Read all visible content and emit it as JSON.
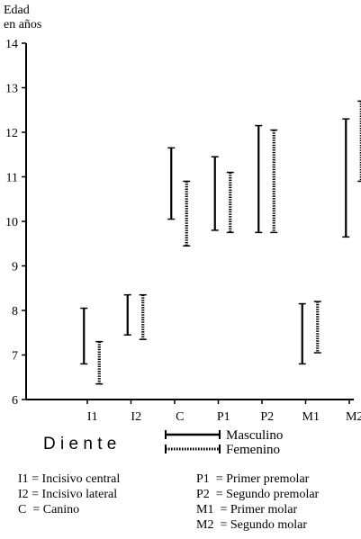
{
  "chart_data": {
    "type": "range",
    "y_axis_title_line1": "Edad",
    "y_axis_title_line2": "en años",
    "ylim": [
      6,
      14
    ],
    "yticks": [
      "6",
      "7",
      "8",
      "9",
      "10",
      "11",
      "12",
      "13",
      "14"
    ],
    "xlabel": "D i e n t e",
    "categories": [
      "I1",
      "I2",
      "C",
      "P1",
      "P2",
      "M1",
      "M2"
    ],
    "series": [
      {
        "name": "Masculino",
        "style": "solid",
        "ranges": [
          [
            6.8,
            8.05
          ],
          [
            7.45,
            8.35
          ],
          [
            10.05,
            11.65
          ],
          [
            9.8,
            11.45
          ],
          [
            9.75,
            12.15
          ],
          [
            6.8,
            8.15
          ],
          [
            9.65,
            12.3
          ]
        ]
      },
      {
        "name": "Femenino",
        "style": "dotted",
        "ranges": [
          [
            6.35,
            7.3
          ],
          [
            7.35,
            8.35
          ],
          [
            9.45,
            10.9
          ],
          [
            9.75,
            11.1
          ],
          [
            9.75,
            12.05
          ],
          [
            7.05,
            8.2
          ],
          [
            10.9,
            12.7
          ]
        ]
      }
    ],
    "key_left": [
      "I1 = Incisivo central",
      "I2 = Incisivo lateral",
      "C  = Canino"
    ],
    "key_right": [
      "P1  = Primer premolar",
      "P2  = Segundo premolar",
      "M1  = Primer molar",
      "M2  = Segundo molar"
    ]
  }
}
